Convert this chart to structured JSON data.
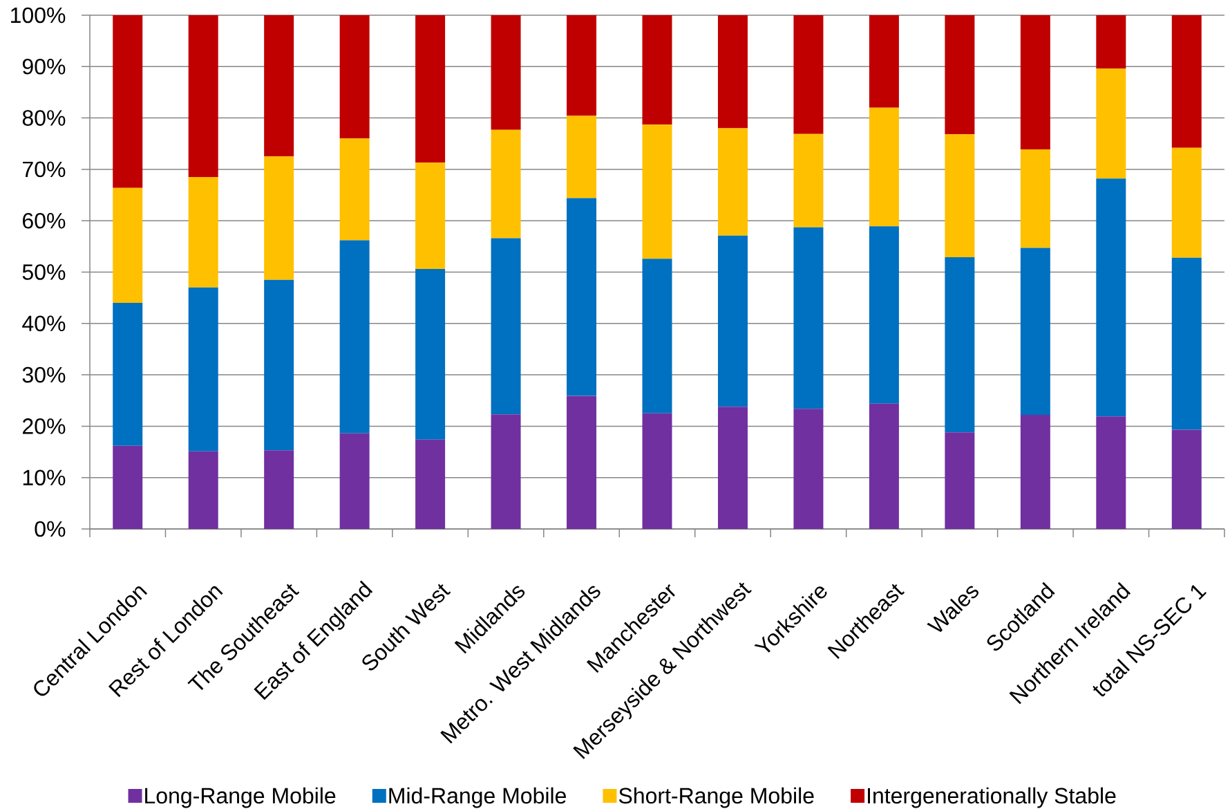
{
  "chart_data": {
    "type": "bar",
    "stacked": true,
    "categories": [
      "Central London",
      "Rest of London",
      "The Southeast",
      "East of England",
      "South West",
      "Midlands",
      "Metro. West Midlands",
      "Manchester",
      "Merseyside & Northwest",
      "Yorkshire",
      "Northeast",
      "Wales",
      "Scotland",
      "Northern Ireland",
      "total NS-SEC 1"
    ],
    "series": [
      {
        "name": "Long-Range Mobile",
        "color": "#7030a0",
        "values": [
          16.2,
          15.1,
          15.3,
          18.6,
          17.4,
          22.3,
          25.9,
          22.5,
          23.8,
          23.4,
          24.4,
          18.8,
          22.2,
          21.9,
          19.3
        ]
      },
      {
        "name": "Mid-Range Mobile",
        "color": "#0070c0",
        "values": [
          27.8,
          31.9,
          33.2,
          37.6,
          33.2,
          34.3,
          38.5,
          30.1,
          33.3,
          35.3,
          34.5,
          34.1,
          32.5,
          46.3,
          33.5
        ]
      },
      {
        "name": "Short-Range Mobile",
        "color": "#ffc000",
        "values": [
          22.4,
          21.5,
          24.0,
          19.8,
          20.7,
          21.1,
          16.0,
          26.1,
          20.9,
          18.2,
          23.1,
          23.9,
          19.2,
          21.4,
          21.4
        ]
      },
      {
        "name": "Intergenerationally Stable",
        "color": "#c00000",
        "values": [
          33.6,
          31.5,
          27.5,
          24.0,
          28.7,
          22.3,
          19.6,
          21.3,
          22.0,
          23.1,
          18.0,
          23.2,
          26.1,
          10.4,
          25.8
        ]
      }
    ],
    "ylim": [
      0,
      100
    ],
    "yticks": [
      {
        "value": 0,
        "label": "0%"
      },
      {
        "value": 10,
        "label": "10%"
      },
      {
        "value": 20,
        "label": "20%"
      },
      {
        "value": 30,
        "label": "30%"
      },
      {
        "value": 40,
        "label": "40%"
      },
      {
        "value": 50,
        "label": "50%"
      },
      {
        "value": 60,
        "label": "60%"
      },
      {
        "value": 70,
        "label": "70%"
      },
      {
        "value": 80,
        "label": "80%"
      },
      {
        "value": 90,
        "label": "90%"
      },
      {
        "value": 100,
        "label": "100%"
      }
    ],
    "grid": "y",
    "legend": "bottom"
  }
}
